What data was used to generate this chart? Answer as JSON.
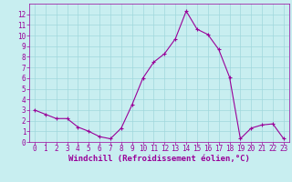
{
  "x": [
    0,
    1,
    2,
    3,
    4,
    5,
    6,
    7,
    8,
    9,
    10,
    11,
    12,
    13,
    14,
    15,
    16,
    17,
    18,
    19,
    20,
    21,
    22,
    23
  ],
  "y": [
    3.0,
    2.6,
    2.2,
    2.2,
    1.4,
    1.0,
    0.5,
    0.3,
    1.3,
    3.5,
    6.0,
    7.5,
    8.3,
    9.7,
    12.3,
    10.6,
    10.1,
    8.7,
    6.1,
    0.3,
    1.3,
    1.6,
    1.7,
    0.3
  ],
  "line_color": "#990099",
  "marker": "+",
  "bg_color": "#c8eef0",
  "grid_color": "#a0d8dc",
  "xlabel": "Windchill (Refroidissement éolien,°C)",
  "xlabel_color": "#990099",
  "tick_color": "#990099",
  "xlim": [
    -0.5,
    23.5
  ],
  "ylim": [
    0,
    13
  ],
  "yticks": [
    0,
    1,
    2,
    3,
    4,
    5,
    6,
    7,
    8,
    9,
    10,
    11,
    12
  ],
  "xticks": [
    0,
    1,
    2,
    3,
    4,
    5,
    6,
    7,
    8,
    9,
    10,
    11,
    12,
    13,
    14,
    15,
    16,
    17,
    18,
    19,
    20,
    21,
    22,
    23
  ],
  "font_size": 5.5,
  "xlabel_font_size": 6.5
}
